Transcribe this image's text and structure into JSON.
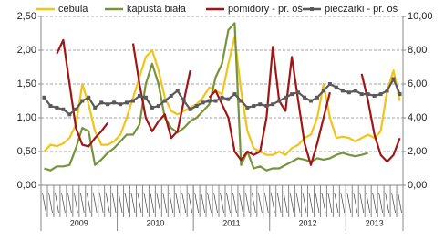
{
  "chart_data": {
    "type": "line",
    "categories": [
      null,
      null,
      null,
      null,
      null,
      null,
      null,
      null,
      null,
      null,
      null,
      null,
      null,
      null,
      null,
      null,
      null,
      null,
      null,
      null,
      null,
      null,
      null,
      null,
      null,
      null,
      null,
      null,
      null,
      null,
      null,
      null,
      null,
      null,
      null,
      null,
      null,
      null,
      null,
      null,
      null,
      null,
      null,
      null,
      null,
      null,
      null,
      null,
      null,
      null,
      null,
      null,
      null,
      null,
      null,
      null,
      null
    ],
    "year_labels": [
      "2009",
      "2010",
      "2011",
      "2012",
      "2013"
    ],
    "months_per_year": 12,
    "series": [
      {
        "name": "cebula",
        "color": "#f2c318",
        "axis": "y",
        "values": [
          0.5,
          0.6,
          0.58,
          0.62,
          0.7,
          0.9,
          1.5,
          1.2,
          0.8,
          0.6,
          0.6,
          0.65,
          0.75,
          1.0,
          1.3,
          1.6,
          1.9,
          2.0,
          1.7,
          1.3,
          1.1,
          1.05,
          1.1,
          1.15,
          1.2,
          1.3,
          1.45,
          1.4,
          1.35,
          1.8,
          2.2,
          1.4,
          0.8,
          0.55,
          0.5,
          0.45,
          0.45,
          0.5,
          0.45,
          0.55,
          0.6,
          0.7,
          0.75,
          1.0,
          1.5,
          1.0,
          0.7,
          0.72,
          0.7,
          0.65,
          0.7,
          0.75,
          0.7,
          0.8,
          1.4,
          1.7,
          1.25
        ]
      },
      {
        "name": "kapusta biała",
        "color": "#77933c",
        "axis": "y",
        "values": [
          0.25,
          0.22,
          0.28,
          0.28,
          0.3,
          0.55,
          0.85,
          0.8,
          0.3,
          0.38,
          0.48,
          0.55,
          0.65,
          0.75,
          0.75,
          0.9,
          1.5,
          1.8,
          1.5,
          1.0,
          0.85,
          0.78,
          0.85,
          0.95,
          1.0,
          1.1,
          1.2,
          1.6,
          1.8,
          2.3,
          2.4,
          0.3,
          0.5,
          0.25,
          0.28,
          0.22,
          0.25,
          0.25,
          0.3,
          0.35,
          0.4,
          0.38,
          0.35,
          0.4,
          0.38,
          0.4,
          0.45,
          0.48,
          0.45,
          0.43,
          0.45,
          0.48,
          null,
          null,
          null,
          null,
          null
        ]
      },
      {
        "name": "pomidory - pr. oś",
        "color": "#a01515",
        "axis": "y2",
        "values": [
          null,
          null,
          7.8,
          8.6,
          6.0,
          3.4,
          2.4,
          2.3,
          2.8,
          3.2,
          3.7,
          null,
          null,
          null,
          8.4,
          6.0,
          4.0,
          3.2,
          3.8,
          4.2,
          2.8,
          3.2,
          5.0,
          6.8,
          null,
          null,
          5.2,
          5.6,
          4.8,
          4.0,
          2.0,
          1.5,
          2.0,
          1.8,
          2.0,
          4.0,
          8.2,
          5.0,
          4.4,
          7.6,
          5.0,
          2.5,
          1.2,
          2.5,
          4.0,
          5.5,
          null,
          null,
          null,
          null,
          6.6,
          5.0,
          3.0,
          1.8,
          1.4,
          1.8,
          2.8
        ]
      },
      {
        "name": "pieczarki - pr. oś",
        "color": "#595959",
        "axis": "y2",
        "markers": true,
        "values": [
          5.2,
          4.7,
          4.6,
          4.5,
          4.2,
          4.5,
          5.0,
          5.2,
          4.6,
          4.9,
          4.8,
          4.9,
          4.8,
          4.9,
          5.0,
          5.3,
          5.2,
          4.6,
          4.7,
          5.0,
          5.3,
          5.6,
          5.0,
          4.5,
          4.7,
          4.9,
          5.0,
          5.0,
          5.2,
          5.1,
          5.4,
          5.0,
          4.6,
          4.7,
          4.8,
          4.7,
          4.8,
          5.0,
          5.2,
          5.4,
          5.5,
          5.2,
          5.0,
          5.2,
          5.6,
          6.0,
          5.8,
          5.6,
          5.5,
          5.6,
          5.4,
          5.4,
          5.3,
          5.4,
          5.6,
          6.3,
          5.4
        ]
      }
    ],
    "ylim": [
      0,
      2.5
    ],
    "yticks": [
      {
        "value": 0,
        "label": "0,00"
      },
      {
        "value": 0.5,
        "label": "0,50"
      },
      {
        "value": 1,
        "label": "1,00"
      },
      {
        "value": 1.5,
        "label": "1,50"
      },
      {
        "value": 2,
        "label": "2,00"
      },
      {
        "value": 2.5,
        "label": "2,50"
      }
    ],
    "y2lim": [
      0,
      10
    ],
    "y2ticks": [
      {
        "value": 0,
        "label": "0,00"
      },
      {
        "value": 2,
        "label": "2,00"
      },
      {
        "value": 4,
        "label": "4,00"
      },
      {
        "value": 6,
        "label": "6,00"
      },
      {
        "value": 8,
        "label": "8,00"
      },
      {
        "value": 10,
        "label": "10,00"
      }
    ],
    "grid": true
  }
}
